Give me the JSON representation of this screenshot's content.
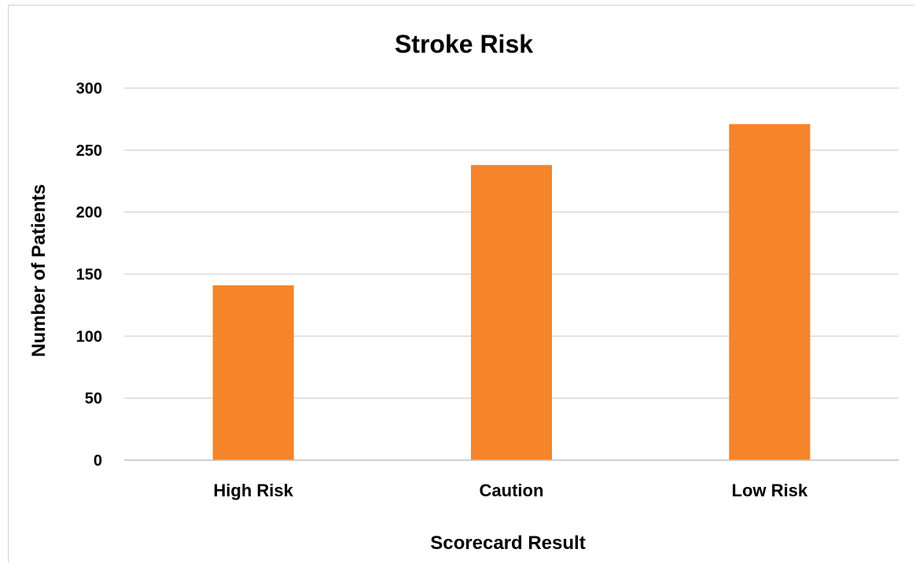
{
  "chart_data": {
    "type": "bar",
    "title": "Stroke Risk",
    "xlabel": "Scorecard Result",
    "ylabel": "Number of Patients",
    "categories": [
      "High Risk",
      "Caution",
      "Low Risk"
    ],
    "values": [
      141,
      238,
      271
    ],
    "ylim": [
      0,
      300
    ],
    "yticks": [
      "0",
      "50",
      "100",
      "150",
      "200",
      "250",
      "300"
    ],
    "grid": true,
    "legend": "none",
    "bar_color": "#F5842A"
  }
}
